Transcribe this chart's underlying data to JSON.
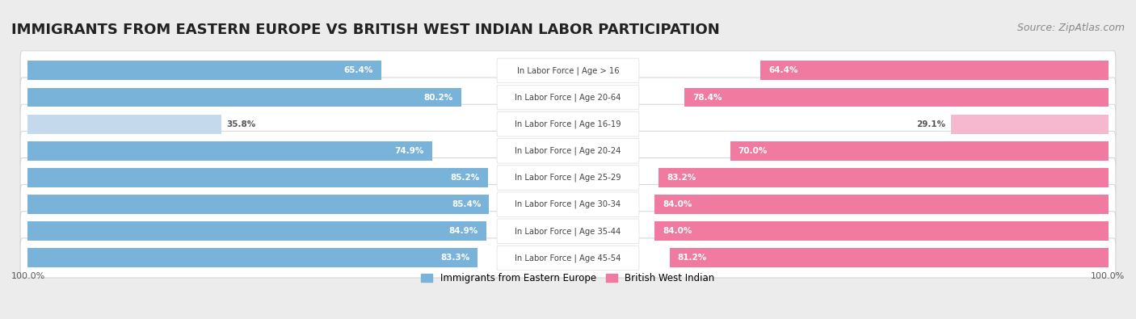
{
  "title": "IMMIGRANTS FROM EASTERN EUROPE VS BRITISH WEST INDIAN LABOR PARTICIPATION",
  "source": "Source: ZipAtlas.com",
  "categories": [
    "In Labor Force | Age > 16",
    "In Labor Force | Age 20-64",
    "In Labor Force | Age 16-19",
    "In Labor Force | Age 20-24",
    "In Labor Force | Age 25-29",
    "In Labor Force | Age 30-34",
    "In Labor Force | Age 35-44",
    "In Labor Force | Age 45-54"
  ],
  "eastern_europe": [
    65.4,
    80.2,
    35.8,
    74.9,
    85.2,
    85.4,
    84.9,
    83.3
  ],
  "british_west_indian": [
    64.4,
    78.4,
    29.1,
    70.0,
    83.2,
    84.0,
    84.0,
    81.2
  ],
  "color_eastern": "#7ab3d9",
  "color_eastern_light": "#c5d9ed",
  "color_british": "#f07aa0",
  "color_british_light": "#f5b8ce",
  "background_color": "#ececec",
  "row_bg_color": "#ffffff",
  "row_gap_color": "#ececec",
  "legend_eastern": "Immigrants from Eastern Europe",
  "legend_british": "British West Indian",
  "left_label": "100.0%",
  "right_label": "100.0%",
  "title_fontsize": 13,
  "source_fontsize": 9,
  "bar_height": 0.72,
  "max_value": 100.0,
  "label_threshold": 50.0
}
